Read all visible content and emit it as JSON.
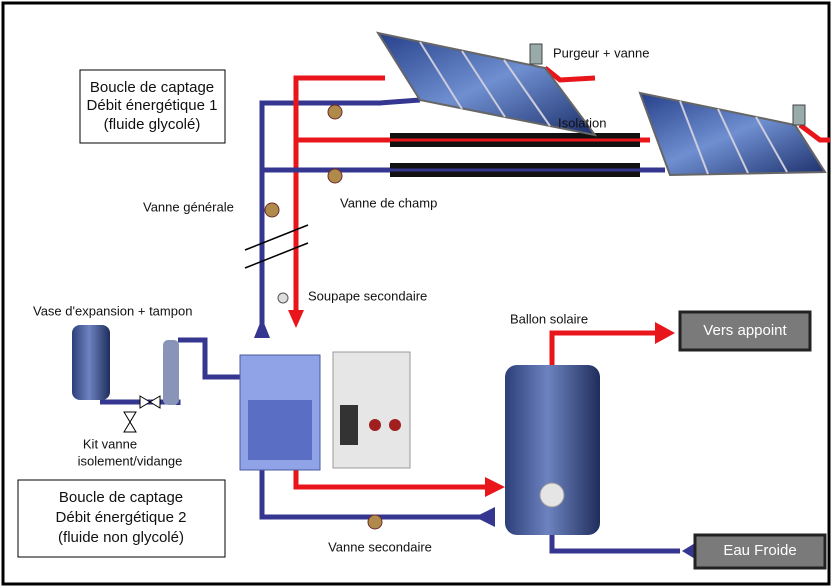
{
  "loops": [
    {
      "lines": [
        "Boucle de captage",
        "Débit énergétique 1",
        "(fluide glycolé)"
      ]
    },
    {
      "lines": [
        "Boucle de captage",
        "Débit énergétique 2",
        "(fluide non glycolé)"
      ]
    }
  ],
  "labels": {
    "purgeur": "Purgeur + vanne",
    "isolation": "Isolation",
    "vanne_generale": "Vanne générale",
    "vanne_champ": "Vanne de champ",
    "soupape": "Soupape secondaire",
    "vase": "Vase d'expansion + tampon",
    "kit_1": "Kit vanne",
    "kit_2": "isolement/vidange",
    "ballon": "Ballon solaire",
    "vanne_secondaire": "Vanne secondaire"
  },
  "outputs": {
    "appoint": "Vers appoint",
    "eau_froide": "Eau Froide"
  }
}
